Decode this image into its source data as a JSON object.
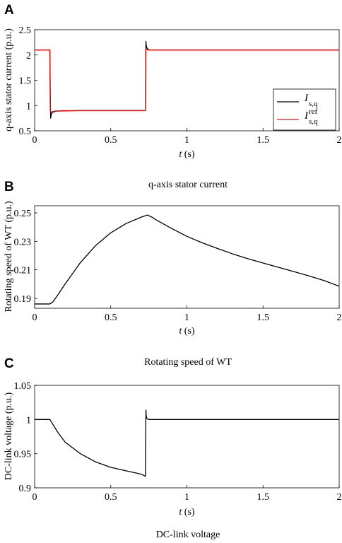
{
  "chart_data": [
    {
      "type": "line",
      "panel_label": "A",
      "caption": "q-axis stator current",
      "ylabel": "q-axis stator current (p.u.)",
      "xlabel_var": "t",
      "xlabel_unit": " (s)",
      "xlim": [
        0,
        2
      ],
      "ylim": [
        0.5,
        2.5
      ],
      "xticks": [
        0,
        0.5,
        1,
        1.5,
        2
      ],
      "xtick_labels": [
        "0",
        "0.5",
        "1",
        "1.5",
        "2"
      ],
      "yticks": [
        0.5,
        1,
        1.5,
        2,
        2.5
      ],
      "ytick_labels": [
        "0.5",
        "1",
        "1.5",
        "2",
        "2.5"
      ],
      "legend": {
        "position": "right",
        "entries": [
          {
            "symbol": "I",
            "sub": "s,q",
            "sup": "",
            "color": "#000000"
          },
          {
            "symbol": "I",
            "sub": "s,q",
            "sup": "ref",
            "color": "#e01010"
          }
        ]
      },
      "series": [
        {
          "color": "#000000",
          "x": [
            0,
            0.1,
            0.103,
            0.105,
            0.108,
            0.112,
            0.116,
            0.12,
            0.13,
            0.15,
            0.2,
            0.3,
            0.5,
            0.728,
            0.729,
            0.731,
            0.733,
            0.736,
            0.74,
            0.745,
            0.75,
            0.76,
            0.8,
            1.0,
            1.5,
            2.0
          ],
          "y": [
            2.1,
            2.1,
            1.2,
            0.75,
            0.8,
            0.84,
            0.86,
            0.87,
            0.88,
            0.89,
            0.895,
            0.9,
            0.9,
            0.9,
            1.7,
            2.27,
            2.2,
            2.15,
            2.13,
            2.115,
            2.105,
            2.1,
            2.1,
            2.1,
            2.1,
            2.1
          ]
        },
        {
          "color": "#e01010",
          "x": [
            0,
            0.1,
            0.101,
            0.103,
            0.108,
            0.115,
            0.13,
            0.2,
            0.5,
            0.728,
            0.729,
            0.731,
            0.735,
            0.742,
            0.76,
            1.0,
            1.5,
            2.0
          ],
          "y": [
            2.1,
            2.1,
            1.5,
            0.88,
            0.86,
            0.88,
            0.89,
            0.9,
            0.9,
            0.9,
            1.6,
            2.1,
            2.12,
            2.1,
            2.1,
            2.1,
            2.1,
            2.1
          ]
        }
      ]
    },
    {
      "type": "line",
      "panel_label": "B",
      "caption": "Rotating speed of WT",
      "ylabel": "Rotating speed of WT (p.u.)",
      "xlabel_var": "t",
      "xlabel_unit": " (s)",
      "xlim": [
        0,
        2
      ],
      "ylim": [
        0.183,
        0.255
      ],
      "xticks": [
        0,
        0.5,
        1,
        1.5,
        2
      ],
      "xtick_labels": [
        "0",
        "0.5",
        "1",
        "1.5",
        "2"
      ],
      "yticks": [
        0.19,
        0.21,
        0.23,
        0.25
      ],
      "ytick_labels": [
        "0.19",
        "0.21",
        "0.23",
        "0.25"
      ],
      "series": [
        {
          "color": "#000000",
          "x": [
            0,
            0.1,
            0.12,
            0.15,
            0.2,
            0.3,
            0.4,
            0.5,
            0.6,
            0.7,
            0.74,
            0.77,
            0.8,
            0.9,
            1.0,
            1.1,
            1.2,
            1.3,
            1.4,
            1.5,
            1.6,
            1.7,
            1.8,
            1.9,
            2.0
          ],
          "y": [
            0.186,
            0.186,
            0.1875,
            0.192,
            0.2,
            0.215,
            0.227,
            0.236,
            0.2425,
            0.247,
            0.2485,
            0.247,
            0.245,
            0.239,
            0.2335,
            0.229,
            0.225,
            0.2212,
            0.2178,
            0.2148,
            0.2118,
            0.2088,
            0.2058,
            0.2025,
            0.1985
          ]
        }
      ]
    },
    {
      "type": "line",
      "panel_label": "C",
      "caption": "DC-link voltage",
      "ylabel": "DC-link voltage (p.u.)",
      "xlabel_var": "t",
      "xlabel_unit": " (s)",
      "xlim": [
        0,
        2
      ],
      "ylim": [
        0.9,
        1.05
      ],
      "xticks": [
        0,
        0.5,
        1,
        1.5,
        2
      ],
      "xtick_labels": [
        "0",
        "0.5",
        "1",
        "1.5",
        "2"
      ],
      "yticks": [
        0.9,
        0.95,
        1,
        1.05
      ],
      "ytick_labels": [
        "0.9",
        "0.95",
        "1",
        "1.05"
      ],
      "series": [
        {
          "color": "#000000",
          "x": [
            0,
            0.1,
            0.12,
            0.15,
            0.2,
            0.3,
            0.4,
            0.5,
            0.6,
            0.7,
            0.728,
            0.729,
            0.731,
            0.733,
            0.736,
            0.74,
            0.75,
            0.8,
            1.0,
            1.5,
            2.0
          ],
          "y": [
            1.0,
            1.0,
            0.993,
            0.982,
            0.967,
            0.95,
            0.938,
            0.93,
            0.925,
            0.92,
            0.917,
            0.965,
            1.014,
            1.005,
            1.002,
            1.001,
            1.0,
            1.0,
            1.0,
            1.0,
            1.0
          ]
        }
      ]
    }
  ]
}
